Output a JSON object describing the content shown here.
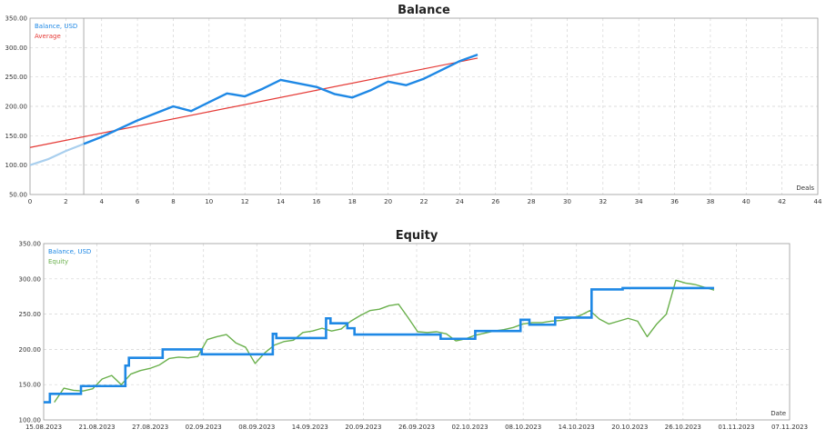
{
  "chart_data": [
    {
      "type": "line",
      "title": "Balance",
      "xlabel": "Deals",
      "ylabel": "",
      "xlim": [
        0,
        44
      ],
      "ylim": [
        50,
        350
      ],
      "x_ticks": [
        "0",
        "2",
        "4",
        "6",
        "8",
        "10",
        "12",
        "14",
        "16",
        "18",
        "20",
        "22",
        "24",
        "26",
        "28",
        "30",
        "32",
        "34",
        "36",
        "38",
        "40",
        "42",
        "44"
      ],
      "y_ticks": [
        "350.00",
        "300.00",
        "250.00",
        "200.00",
        "150.00",
        "100.00",
        "50.00"
      ],
      "legend": [
        "Balance, USD",
        "Average"
      ],
      "marker_line_x": 3,
      "series": [
        {
          "name": "Balance, USD",
          "color": "#1e88e5",
          "x": [
            0,
            1,
            2,
            3,
            4,
            5,
            6,
            7,
            8,
            9,
            10,
            11,
            12,
            13,
            14,
            15,
            16,
            17,
            18,
            19,
            20,
            21,
            22,
            23,
            24,
            25
          ],
          "y": [
            100,
            110,
            124,
            136,
            148,
            162,
            176,
            188,
            200,
            192,
            207,
            222,
            217,
            230,
            245,
            239,
            233,
            221,
            215,
            227,
            242,
            236,
            247,
            262,
            277,
            288
          ]
        },
        {
          "name": "Average",
          "color": "#e53935",
          "x": [
            0,
            25
          ],
          "y": [
            130,
            282
          ]
        }
      ]
    },
    {
      "type": "line",
      "title": "Equity",
      "xlabel": "Date",
      "ylabel": "",
      "ylim": [
        100,
        350
      ],
      "x_ticks": [
        "15.08.2023",
        "21.08.2023",
        "27.08.2023",
        "02.09.2023",
        "08.09.2023",
        "14.09.2023",
        "20.09.2023",
        "26.09.2023",
        "02.10.2023",
        "08.10.2023",
        "14.10.2023",
        "20.10.2023",
        "26.10.2023",
        "01.11.2023",
        "07.11.2023"
      ],
      "y_ticks": [
        "350.00",
        "300.00",
        "250.00",
        "200.00",
        "150.00",
        "100.00"
      ],
      "legend": [
        "Balance, USD",
        "Equity"
      ],
      "series": [
        {
          "name": "Balance, USD",
          "color": "#1e88e5",
          "x": [
            0,
            0.7,
            0.7,
            4.2,
            4.2,
            9.2,
            9.2,
            9.6,
            9.6,
            13.4,
            13.4,
            17.8,
            17.8,
            25.8,
            25.8,
            26.2,
            26.2,
            31.8,
            31.8,
            32.3,
            32.3,
            34.2,
            34.2,
            35.0,
            35.0,
            44.7,
            44.7,
            48.2,
            48.2,
            48.6,
            48.6,
            53.7,
            53.7,
            54.7,
            54.7,
            55.2,
            55.2,
            57.6,
            57.6,
            61.7,
            61.7,
            65.2,
            65.2,
            66.5,
            66.5,
            75.5
          ],
          "y": [
            125,
            125,
            137,
            137,
            148,
            148,
            177,
            177,
            188,
            188,
            200,
            200,
            193,
            193,
            222,
            222,
            216,
            216,
            244,
            244,
            237,
            237,
            230,
            230,
            221,
            221,
            215,
            215,
            215,
            215,
            226,
            226,
            242,
            242,
            235,
            235,
            235,
            235,
            245,
            245,
            285,
            285,
            287,
            287,
            287,
            287
          ]
        },
        {
          "name": "Equity",
          "color": "#6ab04c",
          "x": [
            0,
            1,
            2,
            3,
            4,
            5,
            6,
            7,
            8,
            9,
            10,
            11,
            12,
            13,
            14,
            15,
            16,
            17,
            18,
            19,
            20,
            21,
            22,
            23,
            24,
            25,
            26,
            27,
            28,
            29,
            30,
            31,
            32,
            33,
            34,
            35,
            36,
            37,
            38,
            39,
            40,
            41,
            42,
            43,
            44,
            45,
            46,
            47,
            48,
            49,
            50,
            51,
            52,
            53,
            54,
            55,
            56,
            57,
            58,
            59,
            60,
            61,
            62,
            63,
            64,
            65,
            66,
            67,
            68,
            69
          ],
          "y": [
            125,
            145,
            142,
            141,
            144,
            158,
            163,
            150,
            165,
            170,
            173,
            178,
            187,
            189,
            188,
            190,
            214,
            218,
            221,
            209,
            203,
            180,
            195,
            206,
            211,
            213,
            224,
            226,
            230,
            226,
            229,
            240,
            248,
            255,
            257,
            262,
            264,
            245,
            225,
            224,
            225,
            222,
            212,
            215,
            220,
            223,
            226,
            228,
            231,
            236,
            238,
            238,
            240,
            241,
            244,
            248,
            255,
            243,
            236,
            240,
            244,
            240,
            218,
            236,
            250,
            298,
            294,
            292,
            288,
            284
          ]
        }
      ]
    }
  ]
}
